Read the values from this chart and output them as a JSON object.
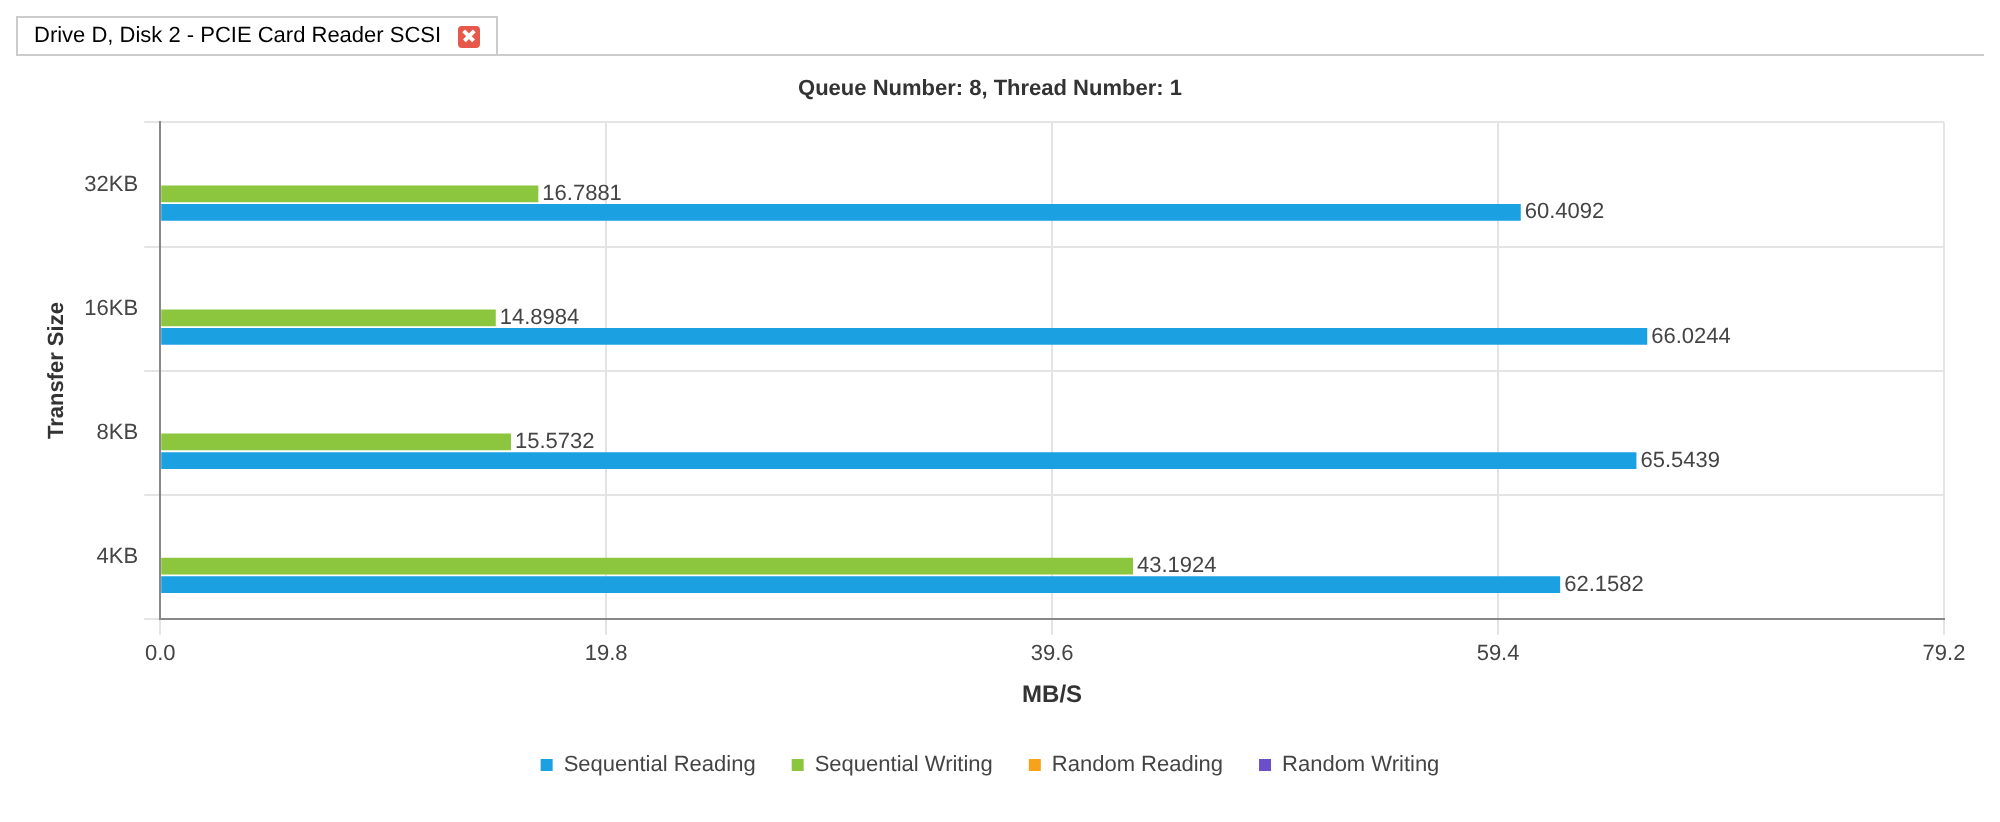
{
  "chart_data": {
    "type": "bar",
    "orientation": "horizontal",
    "title": "Queue Number: 8, Thread Number: 1",
    "xlabel": "MB/S",
    "ylabel": "Transfer Size",
    "annotations": [
      "Drive D, Disk 2 - PCIE Card Reader SCSI"
    ],
    "categories": [
      "32KB",
      "16KB",
      "8KB",
      "4KB"
    ],
    "series": [
      {
        "name": "Sequential Reading",
        "color": "#1ba1e2",
        "values": [
          60.4092,
          66.0244,
          65.5439,
          62.1582
        ]
      },
      {
        "name": "Sequential Writing",
        "color": "#8cc63f",
        "values": [
          16.7881,
          14.8984,
          15.5732,
          43.1924
        ]
      },
      {
        "name": "Random Reading",
        "color": "#f7a21b",
        "values": [
          null,
          null,
          null,
          null
        ]
      },
      {
        "name": "Random Writing",
        "color": "#6a4fc9",
        "values": [
          null,
          null,
          null,
          null
        ]
      }
    ],
    "xlim": [
      0,
      79.2
    ],
    "xticks": [
      {
        "value": 0,
        "label": "0.0"
      },
      19.8,
      39.6,
      59.4,
      {
        "value": 79.2,
        "label": "79.2"
      }
    ],
    "grid": true,
    "legend": "bottom",
    "marker": "square",
    "data_labels": true
  }
}
